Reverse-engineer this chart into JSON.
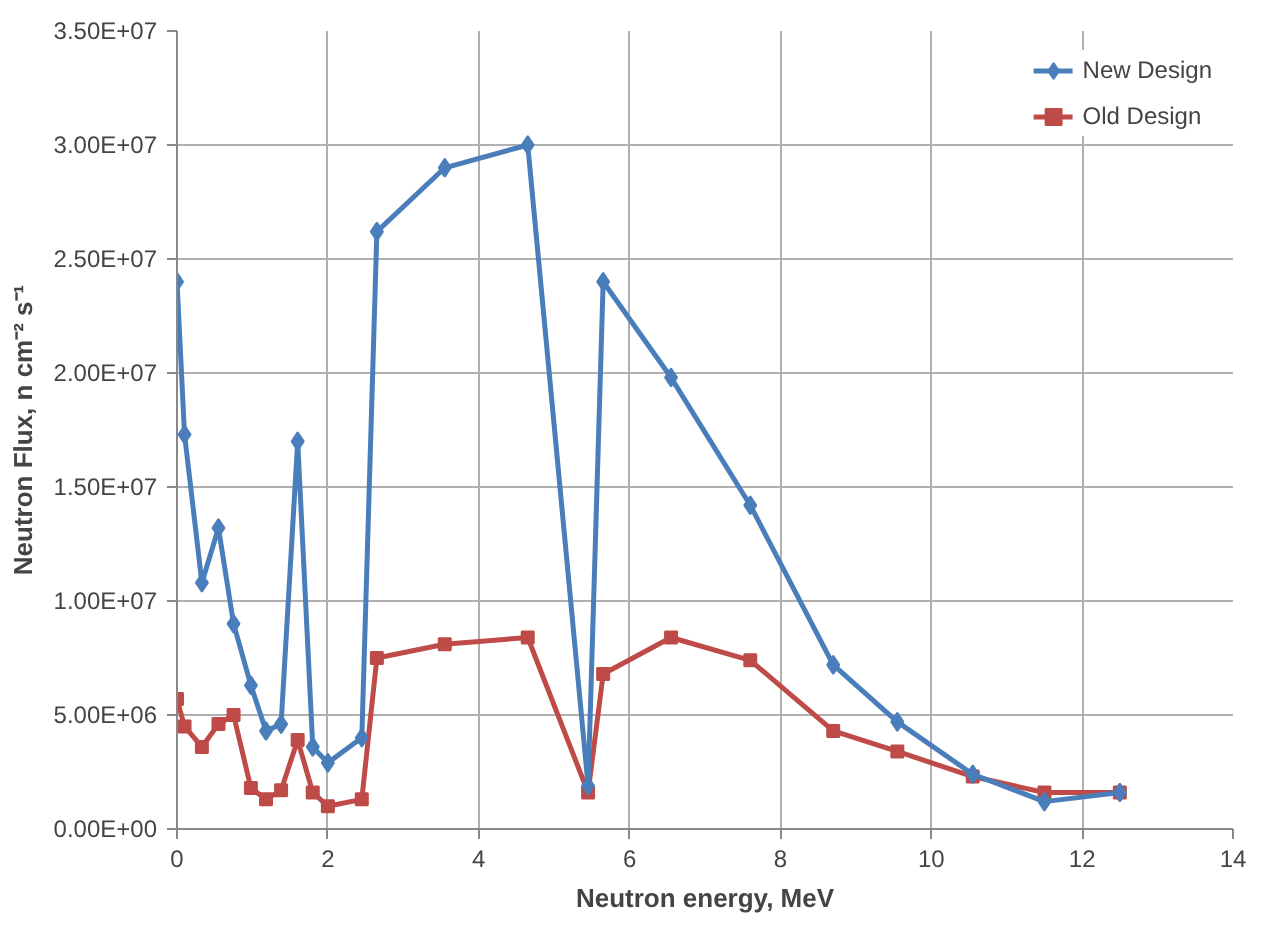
{
  "chart_data": {
    "type": "line",
    "xlabel": "Neutron energy, MeV",
    "ylabel": "Neutron Flux, n cm⁻² s⁻¹",
    "x": [
      0,
      0.1,
      0.33,
      0.55,
      0.75,
      0.98,
      1.18,
      1.38,
      1.6,
      1.8,
      2.0,
      2.45,
      2.65,
      3.55,
      4.65,
      5.45,
      5.65,
      6.55,
      7.6,
      8.7,
      9.55,
      10.55,
      11.5,
      12.5
    ],
    "series": [
      {
        "name": "New Design",
        "color": "#4a7ebb",
        "marker": "diamond",
        "values": [
          24000000,
          17300000,
          10800000,
          13200000,
          9000000,
          6300000,
          4300000,
          4600000,
          17000000,
          3600000,
          2900000,
          4000000,
          26200000,
          29000000,
          30000000,
          1900000,
          24000000,
          19800000,
          14200000,
          7200000,
          4700000,
          2400000,
          1200000,
          1600000
        ]
      },
      {
        "name": "Old Design",
        "color": "#be4b48",
        "marker": "square",
        "values": [
          5700000,
          4500000,
          3600000,
          4600000,
          5000000,
          1800000,
          1300000,
          1700000,
          3900000,
          1600000,
          1000000,
          1300000,
          7500000,
          8100000,
          8400000,
          1600000,
          6800000,
          8400000,
          7400000,
          4300000,
          3400000,
          2300000,
          1600000,
          1600000
        ]
      }
    ],
    "xlim": [
      0,
      14
    ],
    "xticks": [
      0,
      2,
      4,
      6,
      8,
      10,
      12,
      14
    ],
    "ylim": [
      0,
      35000000
    ],
    "yticks": [
      {
        "value": 0,
        "label": "0.00E+00"
      },
      {
        "value": 5000000,
        "label": "5.00E+06"
      },
      {
        "value": 10000000,
        "label": "1.00E+07"
      },
      {
        "value": 15000000,
        "label": "1.50E+07"
      },
      {
        "value": 20000000,
        "label": "2.00E+07"
      },
      {
        "value": 25000000,
        "label": "2.50E+07"
      },
      {
        "value": 30000000,
        "label": "3.00E+07"
      },
      {
        "value": 35000000,
        "label": "3.50E+07"
      }
    ],
    "grid": true,
    "legend": "top right",
    "line_style": "solid"
  }
}
